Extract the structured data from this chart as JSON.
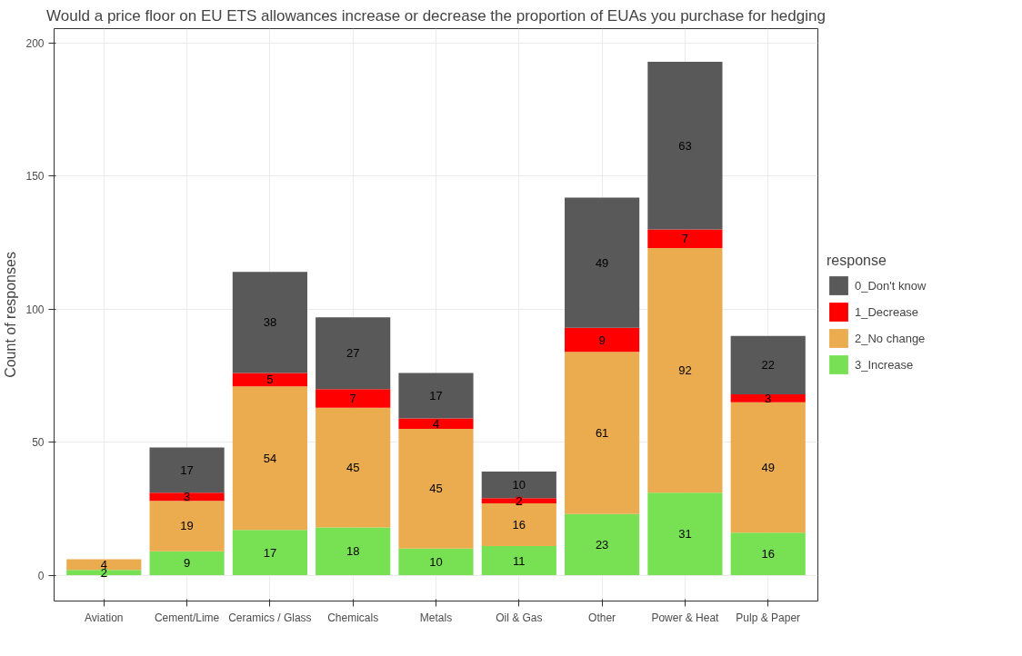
{
  "chart_data": {
    "type": "bar",
    "stacked": true,
    "title": "Would a price floor on EU ETS allowances increase or decrease the proportion of EUAs you purchase for hedging",
    "ylabel": "Count of responses",
    "legend_title": "response",
    "categories": [
      "Aviation",
      "Cement/Lime",
      "Ceramics / Glass",
      "Chemicals",
      "Metals",
      "Oil & Gas",
      "Other",
      "Power & Heat",
      "Pulp & Paper"
    ],
    "series": [
      {
        "name": "3_Increase",
        "color": "#77e153",
        "values": [
          2,
          9,
          17,
          18,
          10,
          11,
          23,
          31,
          16
        ]
      },
      {
        "name": "2_No change",
        "color": "#ebab4f",
        "values": [
          4,
          19,
          54,
          45,
          45,
          16,
          61,
          92,
          49
        ]
      },
      {
        "name": "1_Decrease",
        "color": "#ff0000",
        "values": [
          null,
          3,
          5,
          7,
          4,
          2,
          9,
          7,
          3
        ]
      },
      {
        "name": "0_Don't know",
        "color": "#595959",
        "values": [
          null,
          17,
          38,
          27,
          17,
          10,
          49,
          63,
          22
        ]
      }
    ],
    "ylim": [
      -9.7,
      205.5
    ],
    "yticks": [
      0,
      50,
      100,
      150,
      200
    ],
    "grid": true,
    "legend": "right",
    "data_labels": true
  }
}
